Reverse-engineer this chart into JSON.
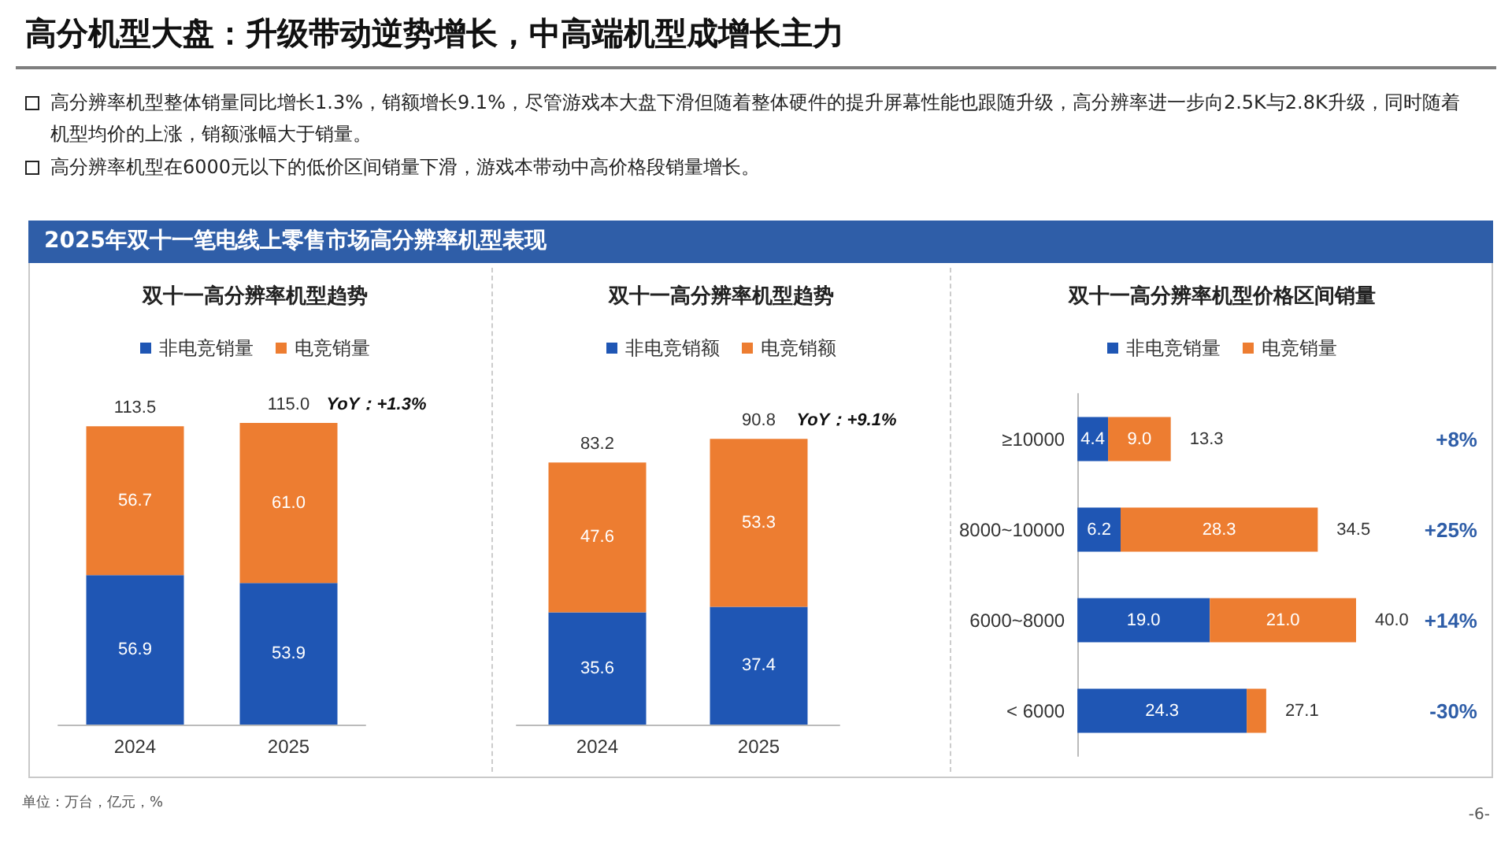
{
  "chart_data": [
    {
      "type": "other",
      "title": "高分机型大盘：升级带动逆势增长，中高端机型成增长主力",
      "annotations": [
        "高分辨率机型整体销量同比增长1.3%，销额增长9.1%，尽管游戏本大盘下滑但随着整体硬件的提升屏幕性能也跟随升级，高分辨率进一步向2.5K与2.8K升级，同时随着机型均价的上涨，销额涨幅大于销量。",
        "高分辨率机型在6000元以下的低价区间销量下滑，游戏本带动中高价格段销量增长。",
        "2025年双十一笔电线上零售市场高分辨率机型表现",
        "单位：万台，亿元，%",
        "-6-"
      ]
    },
    {
      "type": "bar",
      "title": "双十一高分辨率机型趋势",
      "categories": [
        "2024",
        "2025"
      ],
      "stacked": true,
      "legend": "top",
      "tick_labels": "x",
      "series": [
        {
          "name": "非电竞销量",
          "color": "#1f56b4",
          "values": [
            56.9,
            53.9
          ],
          "value_labels": [
            "56.9",
            "53.9"
          ]
        },
        {
          "name": "电竞销量",
          "color": "#ed7d31",
          "values": [
            56.7,
            61.0
          ],
          "value_labels": [
            "56.7",
            "61.0"
          ]
        }
      ],
      "totals": [
        "113.5",
        "115.0"
      ],
      "annotations": [
        "YoY：+1.3%"
      ]
    },
    {
      "type": "bar",
      "title": "双十一高分辨率机型趋势",
      "categories": [
        "2024",
        "2025"
      ],
      "stacked": true,
      "legend": "top",
      "tick_labels": "x",
      "data_labels": true,
      "series": [
        {
          "name": "非电竞销额",
          "color": "#1f56b4",
          "values": [
            35.6,
            37.4
          ]
        },
        {
          "name": "电竞销额",
          "color": "#ed7d31",
          "values": [
            47.6,
            53.3
          ]
        }
      ],
      "totals": [
        "83.2",
        "90.8"
      ],
      "annotations": [
        "YoY：+9.1%"
      ]
    },
    {
      "type": "bar",
      "title": "双十一高分辨率机型价格区间销量",
      "orientation": "horizontal",
      "categories": [
        "≥10000",
        "8000~10000",
        "6000~8000",
        "< 6000"
      ],
      "stacked": true,
      "legend": "top",
      "tick_labels": "y",
      "series": [
        {
          "name": "非电竞销量",
          "color": "#1f56b4",
          "values": [
            4.4,
            6.2,
            19.0,
            24.3
          ],
          "value_labels": [
            "4.4",
            "6.2",
            "19.0",
            "24.3"
          ]
        },
        {
          "name": "电竞销量",
          "color": "#ed7d31",
          "values": [
            9.0,
            28.3,
            21.0,
            2.8
          ],
          "value_labels": [
            "9.0",
            "28.3",
            "21.0",
            null
          ]
        }
      ],
      "totals": [
        "13.3",
        "34.5",
        "40.0",
        "27.1"
      ],
      "annotations": [
        "+8%",
        "+25%",
        "+14%",
        "-30%"
      ]
    }
  ]
}
